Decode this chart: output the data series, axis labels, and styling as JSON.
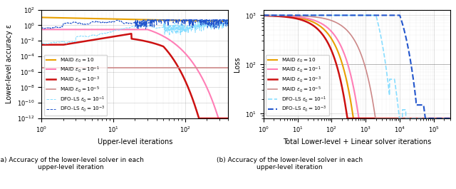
{
  "left_xlabel": "Upper-level iterations",
  "right_xlabel": "Total Lower-level + Linear solver iterations",
  "left_ylabel": "Lower-level accuracy ε",
  "right_ylabel": "Loss",
  "caption_a": "(a) Accuracy of the lower-level solver in each\nupper-level iteration",
  "caption_b": "(b) Accuracy of the lower-level solver in each\nupper-level iteration",
  "colors": {
    "maid_10": "#E8A000",
    "maid_1e1": "#FF7EB6",
    "maid_1e3": "#CC1111",
    "maid_1e5": "#CC8888",
    "dfo_1e1": "#88DDFF",
    "dfo_1e3": "#2255CC"
  }
}
